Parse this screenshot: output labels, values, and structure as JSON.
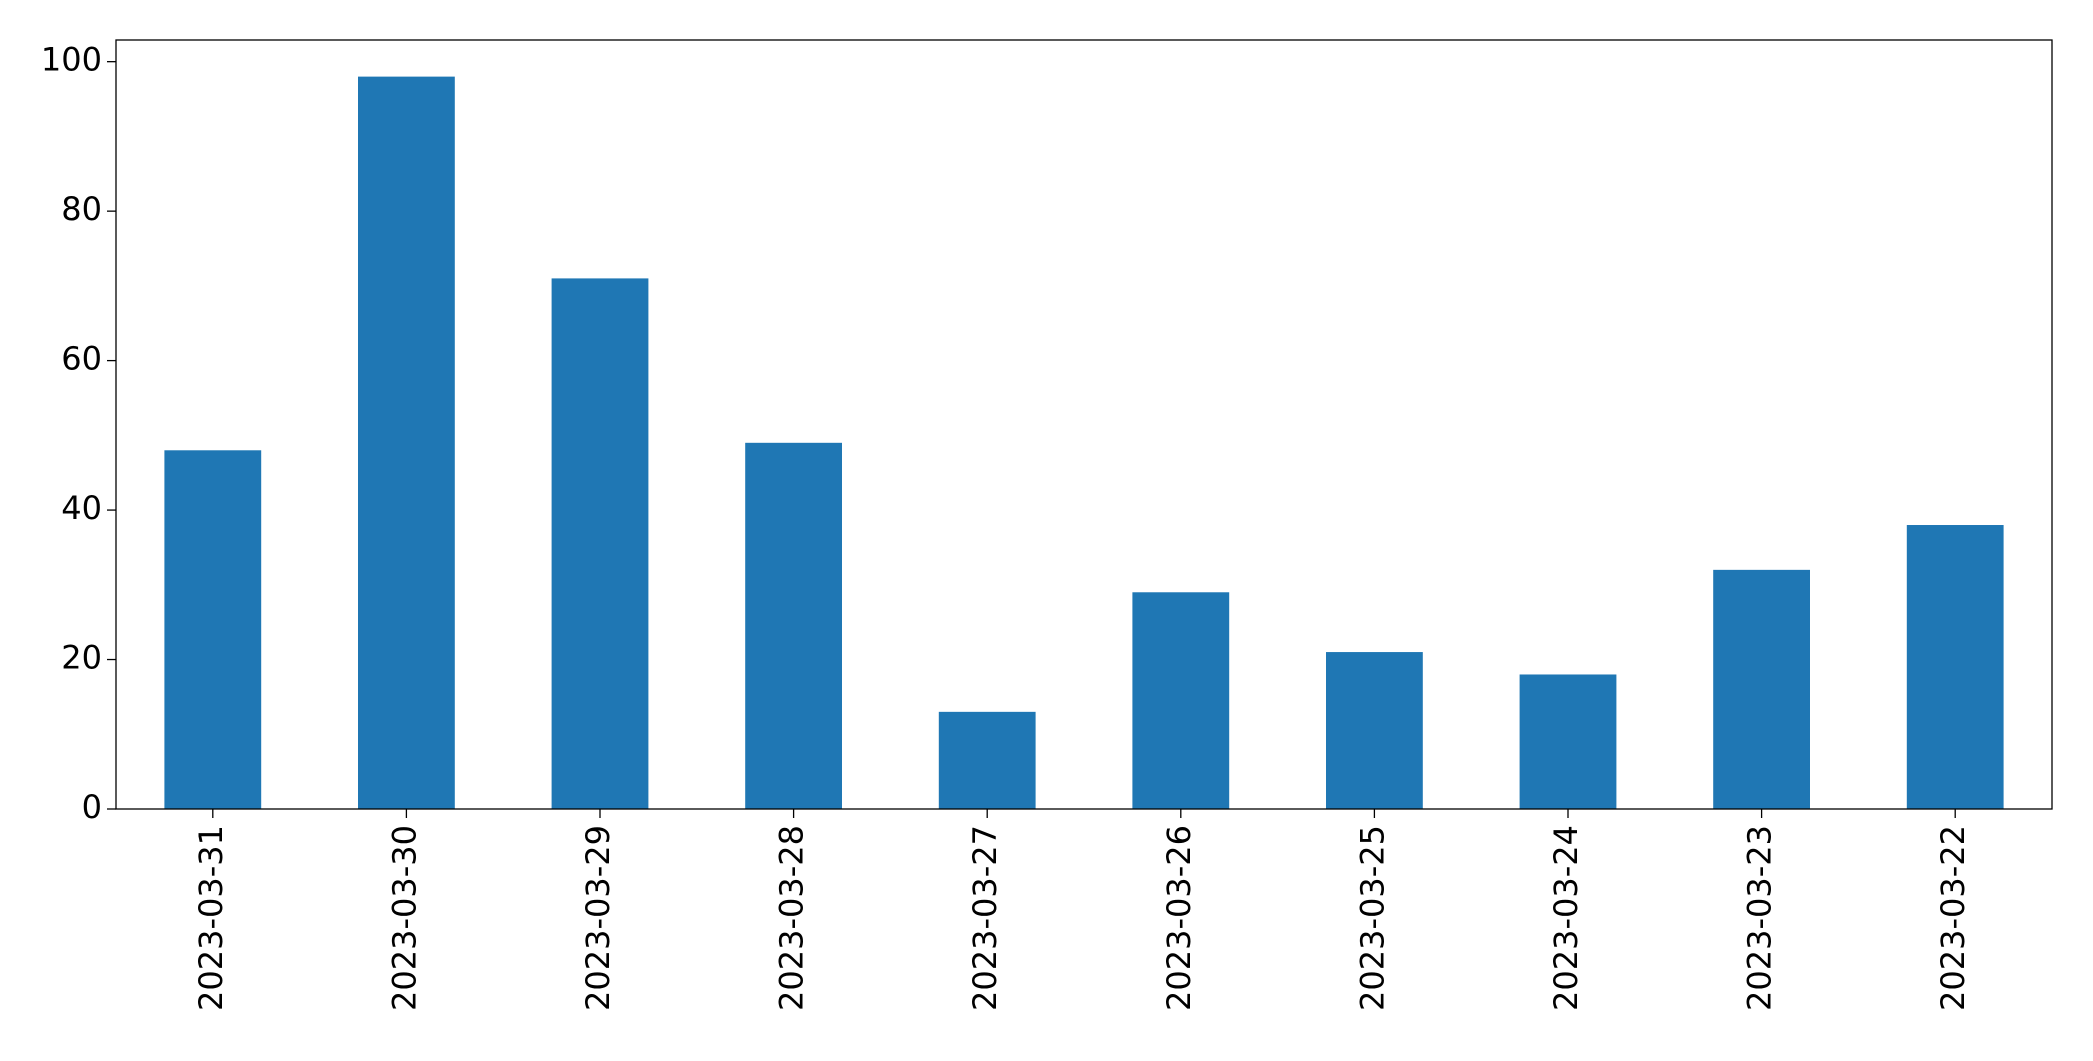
{
  "chart_data": {
    "type": "bar",
    "categories": [
      "2023-03-31",
      "2023-03-30",
      "2023-03-29",
      "2023-03-28",
      "2023-03-27",
      "2023-03-26",
      "2023-03-25",
      "2023-03-24",
      "2023-03-23",
      "2023-03-22"
    ],
    "values": [
      48,
      98,
      71,
      49,
      13,
      29,
      21,
      18,
      32,
      38
    ],
    "color": "#1f77b4",
    "ylim": [
      0,
      102.9
    ],
    "yticks": [
      0,
      20,
      40,
      60,
      80,
      100
    ],
    "grid": false
  }
}
